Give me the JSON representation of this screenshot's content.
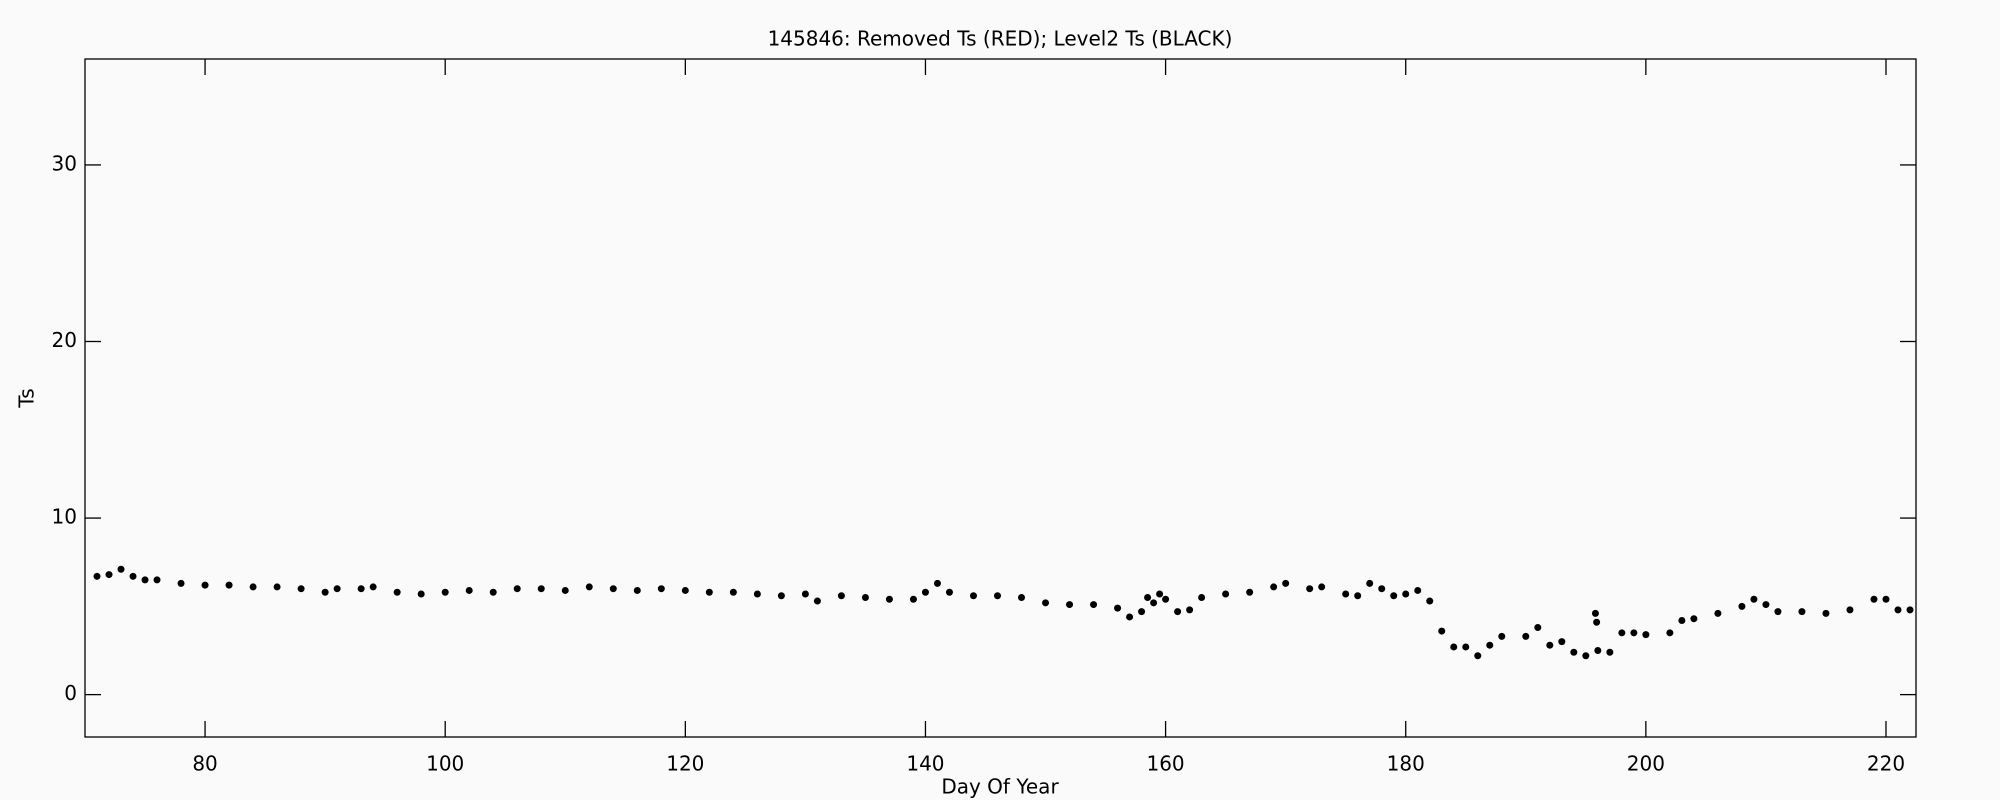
{
  "chart_data": {
    "type": "scatter",
    "title": "145846: Removed Ts (RED); Level2 Ts (BLACK)",
    "x_label": "Day Of Year",
    "y_label": "Ts",
    "color": "#000000",
    "xlim": [
      70,
      222.5
    ],
    "xticks": [
      80,
      100,
      120,
      140,
      160,
      180,
      200,
      220
    ],
    "ylim": [
      -2.4,
      36
    ],
    "yticks": [
      0,
      10,
      20,
      30
    ],
    "x": [
      71,
      72,
      73,
      74,
      75,
      76,
      78,
      80,
      82,
      84,
      86,
      88,
      90,
      91,
      93,
      94,
      96,
      98,
      100,
      102,
      104,
      106,
      108,
      110,
      112,
      114,
      116,
      118,
      120,
      122,
      124,
      126,
      128,
      130,
      131,
      133,
      135,
      137,
      139,
      140,
      141,
      142,
      144,
      146,
      148,
      150,
      152,
      154,
      156,
      157,
      158,
      158.5,
      159,
      159.5,
      160,
      161,
      162,
      163,
      165,
      167,
      169,
      170,
      172,
      173,
      175,
      176,
      177,
      178,
      179,
      180,
      181,
      182,
      183,
      184,
      185,
      186,
      187,
      188,
      190,
      191,
      192,
      193,
      194,
      195,
      195.8,
      195.9,
      196,
      197,
      198,
      199,
      200,
      202,
      203,
      204,
      206,
      208,
      209,
      210,
      211,
      213,
      215,
      217,
      219,
      220,
      221,
      222
    ],
    "values": [
      6.7,
      6.8,
      7.1,
      6.7,
      6.5,
      6.5,
      6.3,
      6.2,
      6.2,
      6.1,
      6.1,
      6.0,
      5.8,
      6.0,
      6.0,
      6.1,
      5.8,
      5.7,
      5.8,
      5.9,
      5.8,
      6.0,
      6.0,
      5.9,
      6.1,
      6.0,
      5.9,
      6.0,
      5.9,
      5.8,
      5.8,
      5.7,
      5.6,
      5.7,
      5.3,
      5.6,
      5.5,
      5.4,
      5.4,
      5.8,
      6.3,
      5.8,
      5.6,
      5.6,
      5.5,
      5.2,
      5.1,
      5.1,
      4.9,
      4.4,
      4.7,
      5.5,
      5.2,
      5.7,
      5.4,
      4.7,
      4.8,
      5.5,
      5.7,
      5.8,
      6.1,
      6.3,
      6.0,
      6.1,
      5.7,
      5.6,
      6.3,
      6.0,
      5.6,
      5.7,
      5.9,
      5.3,
      3.6,
      2.7,
      2.7,
      2.2,
      2.8,
      3.3,
      3.3,
      3.8,
      2.8,
      3.0,
      2.4,
      2.2,
      4.6,
      4.1,
      2.5,
      2.4,
      3.5,
      3.5,
      3.4,
      3.5,
      4.2,
      4.3,
      4.6,
      5.0,
      5.4,
      5.1,
      4.7,
      4.7,
      4.6,
      4.8,
      5.4,
      5.4,
      4.8,
      4.8
    ]
  }
}
